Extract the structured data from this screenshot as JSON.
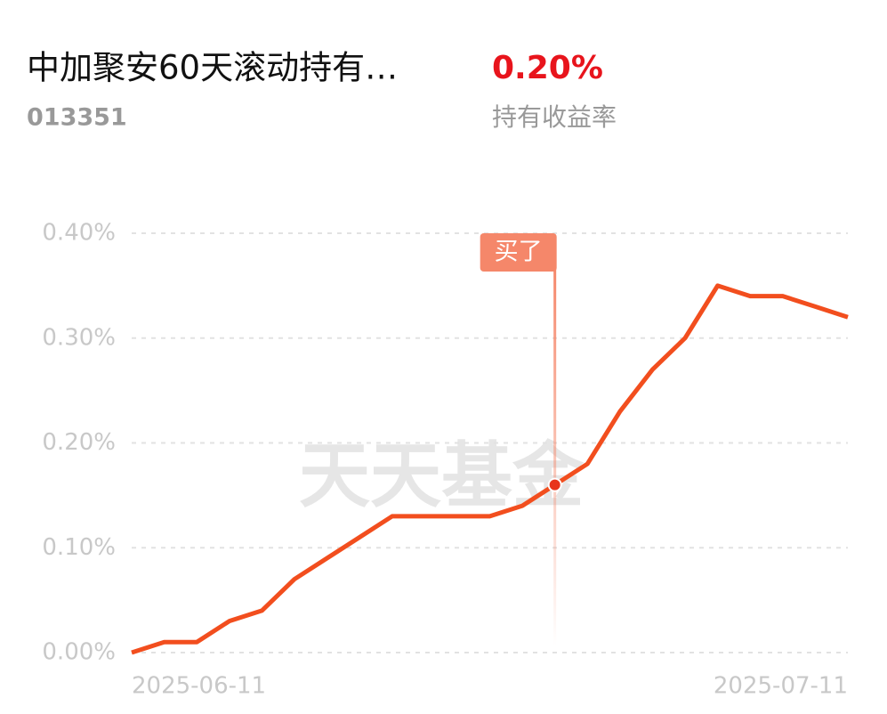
{
  "header": {
    "title": "中加聚安60天滚动持有…",
    "code": "013351",
    "return_value": "0.20%",
    "return_label": "持有收益率"
  },
  "chart_data": {
    "type": "line",
    "categories": [
      "2025-06-11",
      null,
      null,
      null,
      null,
      null,
      null,
      null,
      null,
      null,
      null,
      null,
      null,
      null,
      null,
      null,
      null,
      null,
      null,
      null,
      null,
      null,
      "2025-07-11"
    ],
    "series": [
      {
        "color": "#f24e1e",
        "values": [
          0,
          0.01,
          0.01,
          0.03,
          0.04,
          0.07,
          0.09,
          0.11,
          0.13,
          0.13,
          0.13,
          0.13,
          0.14,
          0.16,
          0.18,
          0.23,
          0.27,
          0.3,
          0.35,
          0.34,
          0.34,
          0.33,
          0.32
        ]
      }
    ],
    "ylim": [
      0,
      0.4
    ],
    "yticks": [
      {
        "value": 0,
        "label": "0.00%"
      },
      {
        "value": 0.1,
        "label": "0.10%"
      },
      {
        "value": 0.2,
        "label": "0.20%"
      },
      {
        "value": 0.3,
        "label": "0.30%"
      },
      {
        "value": 0.4,
        "label": "0.40%"
      }
    ],
    "grid": true,
    "marker": {
      "text": "买了",
      "index": 13
    },
    "watermark": "天天基金"
  }
}
